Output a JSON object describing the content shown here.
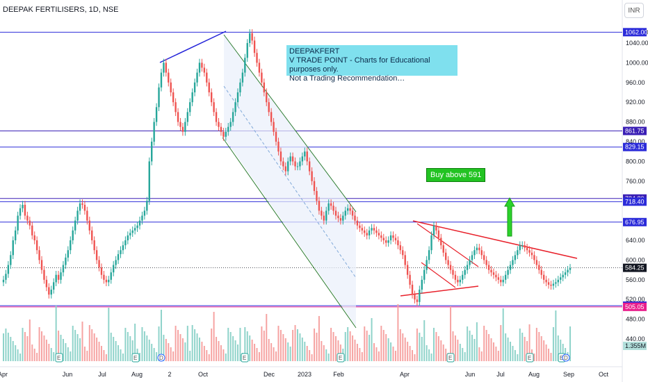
{
  "header": {
    "title": "DEEPAK FERTILISERS, 1D, NSE",
    "currency": "INR"
  },
  "annotations": {
    "note": "DEEPAKFERT\nV TRADE POINT - Charts for Educational purposes only.\nNot a Trading Recommendation…",
    "buy": "Buy above 591"
  },
  "chart_data": {
    "type": "candlestick",
    "title": "DEEPAK FERTILISERS, 1D, NSE",
    "y_unit": "INR",
    "ylim": [
      395,
      1085
    ],
    "y_ticks": [
      440,
      480,
      520,
      560,
      600,
      640,
      680,
      720,
      760,
      800,
      840,
      880,
      920,
      960,
      1000,
      1040,
      1062
    ],
    "x_ticks": [
      "Apr",
      "Jun",
      "Jul",
      "Aug",
      "2",
      "Oct",
      "Dec",
      "2023",
      "Feb",
      "Apr",
      "Jun",
      "Jul",
      "Aug",
      "Sep",
      "Oct"
    ],
    "price_levels": [
      {
        "value": 1062.0,
        "label": "1062.00",
        "color": "#2b2bd9"
      },
      {
        "value": 861.75,
        "label": "861.75",
        "color": "#3a1fb5"
      },
      {
        "value": 829.15,
        "label": "829.15",
        "color": "#2b2bd9"
      },
      {
        "value": 724.8,
        "label": "724.80",
        "color": "#3a1fb5"
      },
      {
        "value": 718.4,
        "label": "718.40",
        "color": "#2b2bd9"
      },
      {
        "value": 676.95,
        "label": "676.95",
        "color": "#2b2bd9"
      },
      {
        "value": 584.25,
        "label": "584.25",
        "color": "#131722"
      },
      {
        "value": 507.55,
        "label": "507.55",
        "color": "#2b2bd9"
      },
      {
        "value": 505.05,
        "label": "505.05",
        "color": "#e91e8c"
      }
    ],
    "volume_label": "1.355M",
    "series": [
      {
        "kind": "price",
        "closes": [
          560,
          572,
          590,
          610,
          640,
          660,
          690,
          705,
          712,
          690,
          680,
          670,
          650,
          640,
          620,
          600,
          580,
          560,
          545,
          530,
          540,
          555,
          570,
          560,
          575,
          590,
          605,
          620,
          640,
          660,
          680,
          700,
          715,
          712,
          700,
          680,
          660,
          640,
          620,
          600,
          585,
          570,
          560,
          555,
          560,
          575,
          590,
          600,
          612,
          620,
          630,
          640,
          650,
          655,
          660,
          665,
          670,
          680,
          690,
          700,
          720,
          800,
          840,
          880,
          910,
          950,
          980,
          1000,
          980,
          960,
          940,
          920,
          900,
          880,
          870,
          860,
          880,
          900,
          920,
          940,
          960,
          980,
          1000,
          990,
          980,
          960,
          940,
          920,
          900,
          880,
          870,
          860,
          850,
          860,
          870,
          880,
          900,
          920,
          940,
          960,
          980,
          1010,
          1040,
          1060,
          1045,
          1020,
          1000,
          980,
          960,
          940,
          920,
          900,
          880,
          860,
          840,
          820,
          800,
          790,
          780,
          800,
          810,
          800,
          790,
          790,
          800,
          810,
          820,
          800,
          780,
          760,
          740,
          720,
          700,
          690,
          680,
          700,
          715,
          710,
          700,
          690,
          685,
          680,
          690,
          700,
          705,
          700,
          690,
          680,
          670,
          665,
          660,
          655,
          650,
          660,
          665,
          660,
          655,
          650,
          645,
          640,
          635,
          640,
          650,
          645,
          640,
          630,
          620,
          610,
          590,
          570,
          550,
          530,
          520,
          515,
          540,
          560,
          580,
          600,
          620,
          650,
          670,
          660,
          645,
          630,
          615,
          600,
          590,
          580,
          570,
          560,
          555,
          560,
          570,
          580,
          590,
          600,
          610,
          620,
          625,
          620,
          610,
          600,
          590,
          580,
          575,
          570,
          565,
          560,
          555,
          560,
          570,
          580,
          590,
          600,
          610,
          620,
          630,
          630,
          625,
          620,
          615,
          610,
          600,
          590,
          580,
          570,
          560,
          555,
          550,
          548,
          552,
          555,
          560,
          565,
          570,
          575,
          580,
          584
        ]
      }
    ]
  }
}
